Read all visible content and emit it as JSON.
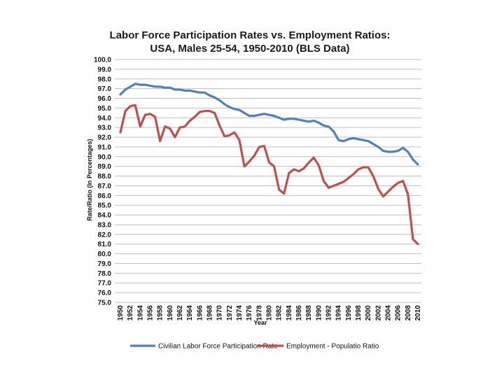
{
  "chart_data": {
    "type": "line",
    "title_lines": [
      "Labor Force Participation Rates vs. Employment Ratios:",
      "USA, Males 25-54, 1950-2010 (BLS Data)"
    ],
    "xlabel": "Year",
    "ylabel": "Rate/Ratio (In Percentages)",
    "ylim": [
      75,
      100
    ],
    "yticks": [
      "75.0",
      "76.0",
      "77.0",
      "78.0",
      "79.0",
      "80.0",
      "81.0",
      "82.0",
      "83.0",
      "84.0",
      "85.0",
      "86.0",
      "87.0",
      "88.0",
      "89.0",
      "90.0",
      "91.0",
      "92.0",
      "93.0",
      "94.0",
      "95.0",
      "96.0",
      "97.0",
      "98.0",
      "99.0",
      "100.0"
    ],
    "xticks": [
      "1950",
      "1952",
      "1954",
      "1956",
      "1958",
      "1960",
      "1962",
      "1964",
      "1966",
      "1968",
      "1970",
      "1972",
      "1974",
      "1976",
      "1978",
      "1980",
      "1982",
      "1984",
      "1986",
      "1988",
      "1990",
      "1992",
      "1994",
      "1996",
      "1998",
      "2000",
      "2002",
      "2004",
      "2006",
      "2008",
      "2010"
    ],
    "grid": "horizontal",
    "legend_position": "bottom",
    "x": [
      1950,
      1951,
      1952,
      1953,
      1954,
      1955,
      1956,
      1957,
      1958,
      1959,
      1960,
      1961,
      1962,
      1963,
      1964,
      1965,
      1966,
      1967,
      1968,
      1969,
      1970,
      1971,
      1972,
      1973,
      1974,
      1975,
      1976,
      1977,
      1978,
      1979,
      1980,
      1981,
      1982,
      1983,
      1984,
      1985,
      1986,
      1987,
      1988,
      1989,
      1990,
      1991,
      1992,
      1993,
      1994,
      1995,
      1996,
      1997,
      1998,
      1999,
      2000,
      2001,
      2002,
      2003,
      2004,
      2005,
      2006,
      2007,
      2008,
      2009,
      2010
    ],
    "series": [
      {
        "name": "Civilian Labor Force Participation Rate",
        "color": "#4f81bd",
        "values": [
          96.4,
          96.9,
          97.2,
          97.5,
          97.4,
          97.4,
          97.3,
          97.2,
          97.2,
          97.1,
          97.1,
          96.9,
          96.9,
          96.8,
          96.8,
          96.7,
          96.6,
          96.6,
          96.3,
          96.1,
          95.8,
          95.4,
          95.1,
          94.9,
          94.8,
          94.5,
          94.2,
          94.2,
          94.3,
          94.4,
          94.3,
          94.2,
          94.0,
          93.8,
          93.9,
          93.9,
          93.8,
          93.7,
          93.6,
          93.7,
          93.5,
          93.2,
          93.1,
          92.6,
          91.7,
          91.6,
          91.8,
          91.9,
          91.8,
          91.7,
          91.6,
          91.3,
          91.0,
          90.6,
          90.5,
          90.5,
          90.6,
          90.9,
          90.5,
          89.7,
          89.2
        ]
      },
      {
        "name": "Employment - Populatio Ratio",
        "color": "#c0504d",
        "values": [
          92.5,
          94.7,
          95.2,
          95.3,
          93.1,
          94.3,
          94.4,
          94.1,
          91.6,
          93.1,
          92.9,
          92.0,
          93.0,
          93.1,
          93.7,
          94.1,
          94.6,
          94.7,
          94.7,
          94.5,
          93.2,
          92.1,
          92.2,
          92.5,
          91.7,
          89.0,
          89.5,
          90.1,
          91.0,
          91.1,
          89.4,
          89.0,
          86.6,
          86.2,
          88.3,
          88.7,
          88.5,
          88.8,
          89.4,
          89.9,
          89.1,
          87.5,
          86.8,
          87.0,
          87.2,
          87.4,
          87.8,
          88.2,
          88.7,
          88.9,
          88.9,
          88.0,
          86.7,
          85.9,
          86.4,
          86.9,
          87.3,
          87.5,
          86.1,
          81.5,
          81.0
        ]
      }
    ]
  }
}
